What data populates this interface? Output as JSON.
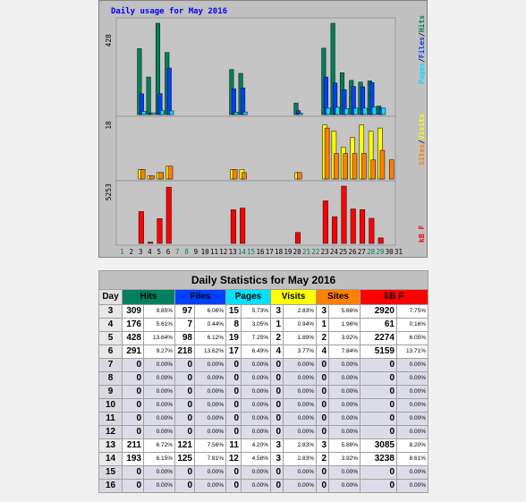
{
  "colors": {
    "hits": "#00805c",
    "files": "#0040ff",
    "pages": "#00e0ff",
    "visits": "#ffff00",
    "sites": "#ff8000",
    "kbf": "#ff0000",
    "panel": "#c0c0c0",
    "border": "#1c48ff"
  },
  "chart_data": {
    "type": "bar",
    "title": "Daily usage for May 2016",
    "panel_labels": {
      "top": [
        "Pages",
        "Files",
        "Hits"
      ],
      "middle": [
        "Sites",
        "Visits"
      ],
      "bottom": "kB F"
    },
    "y_max_labels": {
      "top": "428",
      "middle": "18",
      "bottom": "5253"
    },
    "ylim": {
      "top": [
        0,
        428
      ],
      "middle": [
        0,
        18
      ],
      "bottom": [
        0,
        5253
      ]
    },
    "x": [
      "1",
      "2",
      "3",
      "4",
      "5",
      "6",
      "7",
      "8",
      "9",
      "10",
      "11",
      "12",
      "13",
      "14",
      "15",
      "16",
      "17",
      "18",
      "19",
      "20",
      "21",
      "22",
      "23",
      "24",
      "25",
      "26",
      "27",
      "28",
      "29",
      "30",
      "31"
    ],
    "weekend_days": [
      1,
      7,
      8,
      14,
      15,
      21,
      22,
      28,
      29
    ],
    "series": [
      {
        "name": "Hits",
        "values": [
          0,
          0,
          309,
          176,
          428,
          291,
          0,
          0,
          0,
          0,
          0,
          0,
          211,
          193,
          0,
          0,
          0,
          0,
          0,
          54,
          0,
          0,
          311,
          428,
          196,
          160,
          152,
          158,
          40,
          0,
          0
        ]
      },
      {
        "name": "Files",
        "values": [
          0,
          0,
          97,
          7,
          98,
          218,
          0,
          0,
          0,
          0,
          0,
          0,
          121,
          125,
          0,
          0,
          0,
          0,
          0,
          18,
          0,
          0,
          176,
          148,
          117,
          132,
          130,
          150,
          30,
          0,
          0
        ]
      },
      {
        "name": "Pages",
        "values": [
          0,
          0,
          15,
          8,
          19,
          17,
          0,
          0,
          0,
          0,
          0,
          0,
          11,
          12,
          0,
          0,
          0,
          0,
          0,
          6,
          0,
          0,
          30,
          34,
          28,
          30,
          30,
          36,
          30,
          0,
          0
        ]
      },
      {
        "name": "Visits",
        "values": [
          0,
          0,
          3,
          1,
          2,
          4,
          0,
          0,
          0,
          0,
          0,
          0,
          3,
          3,
          0,
          0,
          0,
          0,
          0,
          2,
          0,
          0,
          17,
          15,
          10,
          13,
          17,
          15,
          16,
          0,
          0
        ]
      },
      {
        "name": "Sites",
        "values": [
          0,
          0,
          3,
          1,
          2,
          4,
          0,
          0,
          0,
          0,
          0,
          0,
          3,
          2,
          0,
          0,
          0,
          0,
          0,
          2,
          0,
          0,
          16,
          8,
          8,
          8,
          8,
          6,
          9,
          6,
          0
        ]
      },
      {
        "name": "kB F",
        "values": [
          0,
          0,
          2920,
          61,
          2274,
          5159,
          0,
          0,
          0,
          0,
          0,
          0,
          3085,
          3238,
          0,
          0,
          0,
          0,
          0,
          1000,
          0,
          0,
          3900,
          2450,
          5253,
          3160,
          3100,
          2300,
          500,
          0,
          0
        ]
      }
    ]
  },
  "table": {
    "title": "Daily Statistics for May 2016",
    "headers": [
      "Day",
      "Hits",
      "Files",
      "Pages",
      "Visits",
      "Sites",
      "kB F"
    ],
    "rows": [
      {
        "day": "3",
        "hits": "309",
        "hits_pct": "9.85%",
        "files": "97",
        "files_pct": "6.06%",
        "pages": "15",
        "pages_pct": "5.73%",
        "visits": "3",
        "visits_pct": "2.83%",
        "sites": "3",
        "sites_pct": "5.66%",
        "kbf": "2920",
        "kbf_pct": "7.75%"
      },
      {
        "day": "4",
        "hits": "176",
        "hits_pct": "5.61%",
        "files": "7",
        "files_pct": "0.44%",
        "pages": "8",
        "pages_pct": "3.05%",
        "visits": "1",
        "visits_pct": "0.94%",
        "sites": "1",
        "sites_pct": "1.96%",
        "kbf": "61",
        "kbf_pct": "0.16%"
      },
      {
        "day": "5",
        "hits": "428",
        "hits_pct": "13.64%",
        "files": "98",
        "files_pct": "6.12%",
        "pages": "19",
        "pages_pct": "7.25%",
        "visits": "2",
        "visits_pct": "1.89%",
        "sites": "2",
        "sites_pct": "3.92%",
        "kbf": "2274",
        "kbf_pct": "6.05%"
      },
      {
        "day": "6",
        "hits": "291",
        "hits_pct": "9.27%",
        "files": "218",
        "files_pct": "13.62%",
        "pages": "17",
        "pages_pct": "6.49%",
        "visits": "4",
        "visits_pct": "3.77%",
        "sites": "4",
        "sites_pct": "7.84%",
        "kbf": "5159",
        "kbf_pct": "13.71%"
      },
      {
        "day": "7",
        "hits": "0",
        "hits_pct": "0.00%",
        "files": "0",
        "files_pct": "0.00%",
        "pages": "0",
        "pages_pct": "0.00%",
        "visits": "0",
        "visits_pct": "0.00%",
        "sites": "0",
        "sites_pct": "0.00%",
        "kbf": "0",
        "kbf_pct": "0.00%"
      },
      {
        "day": "8",
        "hits": "0",
        "hits_pct": "0.00%",
        "files": "0",
        "files_pct": "0.00%",
        "pages": "0",
        "pages_pct": "0.00%",
        "visits": "0",
        "visits_pct": "0.00%",
        "sites": "0",
        "sites_pct": "0.00%",
        "kbf": "0",
        "kbf_pct": "0.00%"
      },
      {
        "day": "9",
        "hits": "0",
        "hits_pct": "0.00%",
        "files": "0",
        "files_pct": "0.00%",
        "pages": "0",
        "pages_pct": "0.00%",
        "visits": "0",
        "visits_pct": "0.00%",
        "sites": "0",
        "sites_pct": "0.00%",
        "kbf": "0",
        "kbf_pct": "0.00%"
      },
      {
        "day": "10",
        "hits": "0",
        "hits_pct": "0.00%",
        "files": "0",
        "files_pct": "0.00%",
        "pages": "0",
        "pages_pct": "0.00%",
        "visits": "0",
        "visits_pct": "0.00%",
        "sites": "0",
        "sites_pct": "0.00%",
        "kbf": "0",
        "kbf_pct": "0.00%"
      },
      {
        "day": "11",
        "hits": "0",
        "hits_pct": "0.00%",
        "files": "0",
        "files_pct": "0.00%",
        "pages": "0",
        "pages_pct": "0.00%",
        "visits": "0",
        "visits_pct": "0.00%",
        "sites": "0",
        "sites_pct": "0.00%",
        "kbf": "0",
        "kbf_pct": "0.00%"
      },
      {
        "day": "12",
        "hits": "0",
        "hits_pct": "0.00%",
        "files": "0",
        "files_pct": "0.00%",
        "pages": "0",
        "pages_pct": "0.00%",
        "visits": "0",
        "visits_pct": "0.00%",
        "sites": "0",
        "sites_pct": "0.00%",
        "kbf": "0",
        "kbf_pct": "0.00%"
      },
      {
        "day": "13",
        "hits": "211",
        "hits_pct": "6.72%",
        "files": "121",
        "files_pct": "7.56%",
        "pages": "11",
        "pages_pct": "4.20%",
        "visits": "3",
        "visits_pct": "2.83%",
        "sites": "3",
        "sites_pct": "5.88%",
        "kbf": "3085",
        "kbf_pct": "8.20%"
      },
      {
        "day": "14",
        "hits": "193",
        "hits_pct": "6.15%",
        "files": "125",
        "files_pct": "7.81%",
        "pages": "12",
        "pages_pct": "4.58%",
        "visits": "3",
        "visits_pct": "2.83%",
        "sites": "2",
        "sites_pct": "3.92%",
        "kbf": "3238",
        "kbf_pct": "8.61%"
      },
      {
        "day": "15",
        "hits": "0",
        "hits_pct": "0.00%",
        "files": "0",
        "files_pct": "0.00%",
        "pages": "0",
        "pages_pct": "0.00%",
        "visits": "0",
        "visits_pct": "0.00%",
        "sites": "0",
        "sites_pct": "0.00%",
        "kbf": "0",
        "kbf_pct": "0.00%"
      },
      {
        "day": "16",
        "hits": "0",
        "hits_pct": "0.00%",
        "files": "0",
        "files_pct": "0.00%",
        "pages": "0",
        "pages_pct": "0.00%",
        "visits": "0",
        "visits_pct": "0.00%",
        "sites": "0",
        "sites_pct": "0.00%",
        "kbf": "0",
        "kbf_pct": "0.00%"
      }
    ]
  }
}
